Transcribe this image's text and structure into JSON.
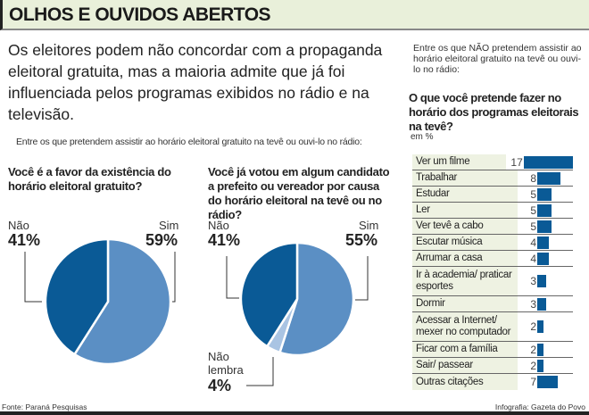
{
  "header": {
    "title": "OLHOS E OUVIDOS ABERTOS"
  },
  "intro": "Os eleitores podem não concordar com a propaganda eleitoral gratuita, mas a maioria admite que já foi influenciada pelos programas exibidos no rádio e na televisão.",
  "subtitle": "Entre os que pretendem assistir ao horário eleitoral gratuito na tevê ou ouvi-lo no rádio:",
  "colors": {
    "dark": "#0a5a96",
    "light": "#5b8fc4",
    "pale": "#a9c4e3",
    "panel": "#eef2e2"
  },
  "chart_data": [
    {
      "type": "pie",
      "title": "Você é a favor da existência do horário eleitoral gratuito?",
      "slices": [
        {
          "label": "Sim",
          "value": 59,
          "text": "59%"
        },
        {
          "label": "Não",
          "value": 41,
          "text": "41%"
        }
      ]
    },
    {
      "type": "pie",
      "title": "Você já votou em algum candidato a prefeito ou vereador por causa do horário eleitoral na tevê ou no rádio?",
      "slices": [
        {
          "label": "Sim",
          "value": 55,
          "text": "55%"
        },
        {
          "label": "Não lembra",
          "value": 4,
          "text": "4%"
        },
        {
          "label": "Não",
          "value": 41,
          "text": "41%"
        }
      ]
    },
    {
      "type": "bar",
      "note": "Entre os que NÃO pretendem assistir ao horário eleitoral gratuito na tevê ou ouvi-lo no rádio:",
      "title": "O que você pretende fazer no horário dos programas eleitorais na tevê?",
      "unit": "em %",
      "categories": [
        "Ver um filme",
        "Trabalhar",
        "Estudar",
        "Ler",
        "Ver tevê a cabo",
        "Escutar música",
        "Arrumar a casa",
        "Ir à academia/ praticar esportes",
        "Dormir",
        "Acessar a Internet/ mexer no computador",
        "Ficar com a família",
        "Sair/ passear",
        "Outras citações"
      ],
      "values": [
        17,
        8,
        5,
        5,
        5,
        4,
        4,
        3,
        3,
        2,
        2,
        2,
        7
      ]
    }
  ],
  "footer": {
    "source": "Fonte: Paraná Pesquisas",
    "credit": "Infografia: Gazeta do Povo"
  }
}
